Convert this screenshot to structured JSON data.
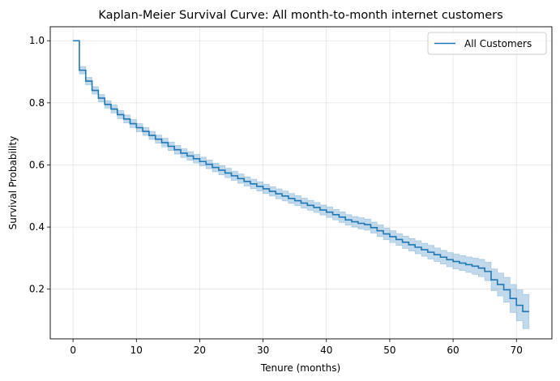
{
  "chart_data": {
    "type": "line",
    "step": true,
    "title": "Kaplan-Meier Survival Curve: All month-to-month internet customers",
    "xlabel": "Tenure (months)",
    "ylabel": "Survival Probability",
    "xlim": [
      -3.6,
      75.6
    ],
    "ylim": [
      0.04,
      1.045
    ],
    "xticks": [
      0,
      10,
      20,
      30,
      40,
      50,
      60,
      70
    ],
    "xtick_labels": [
      "0",
      "10",
      "20",
      "30",
      "40",
      "50",
      "60",
      "70"
    ],
    "yticks": [
      0.2,
      0.4,
      0.6,
      0.8,
      1.0
    ],
    "ytick_labels": [
      "0.2",
      "0.4",
      "0.6",
      "0.8",
      "1.0"
    ],
    "grid": true,
    "legend": {
      "position": "top-right",
      "entries": [
        "All Customers"
      ]
    },
    "colors": {
      "line": "#1f77b4",
      "band": "#1f77b4"
    },
    "series": [
      {
        "name": "All Customers",
        "x": [
          0,
          1,
          2,
          3,
          4,
          5,
          6,
          7,
          8,
          9,
          10,
          11,
          12,
          13,
          14,
          15,
          16,
          17,
          18,
          19,
          20,
          21,
          22,
          23,
          24,
          25,
          26,
          27,
          28,
          29,
          30,
          31,
          32,
          33,
          34,
          35,
          36,
          37,
          38,
          39,
          40,
          41,
          42,
          43,
          44,
          45,
          46,
          47,
          48,
          49,
          50,
          51,
          52,
          53,
          54,
          55,
          56,
          57,
          58,
          59,
          60,
          61,
          62,
          63,
          64,
          65,
          66,
          67,
          68,
          69,
          70,
          71,
          72
        ],
        "y": [
          1.0,
          0.905,
          0.87,
          0.84,
          0.815,
          0.795,
          0.78,
          0.762,
          0.748,
          0.733,
          0.72,
          0.708,
          0.695,
          0.683,
          0.672,
          0.66,
          0.649,
          0.638,
          0.629,
          0.62,
          0.611,
          0.602,
          0.592,
          0.583,
          0.574,
          0.565,
          0.556,
          0.547,
          0.539,
          0.531,
          0.523,
          0.515,
          0.507,
          0.5,
          0.492,
          0.485,
          0.477,
          0.47,
          0.463,
          0.455,
          0.448,
          0.44,
          0.432,
          0.423,
          0.417,
          0.412,
          0.408,
          0.398,
          0.388,
          0.378,
          0.369,
          0.36,
          0.351,
          0.343,
          0.335,
          0.327,
          0.319,
          0.311,
          0.303,
          0.295,
          0.289,
          0.284,
          0.279,
          0.274,
          0.268,
          0.257,
          0.23,
          0.215,
          0.198,
          0.17,
          0.148,
          0.128,
          0.128
        ],
        "ci_halfwidth": [
          0,
          0.012,
          0.012,
          0.012,
          0.012,
          0.012,
          0.013,
          0.013,
          0.013,
          0.013,
          0.013,
          0.013,
          0.013,
          0.013,
          0.014,
          0.014,
          0.014,
          0.014,
          0.014,
          0.014,
          0.014,
          0.014,
          0.014,
          0.015,
          0.015,
          0.015,
          0.015,
          0.015,
          0.015,
          0.015,
          0.015,
          0.015,
          0.016,
          0.016,
          0.016,
          0.016,
          0.016,
          0.016,
          0.016,
          0.016,
          0.017,
          0.017,
          0.017,
          0.017,
          0.017,
          0.018,
          0.018,
          0.018,
          0.019,
          0.019,
          0.019,
          0.019,
          0.02,
          0.02,
          0.021,
          0.021,
          0.022,
          0.022,
          0.022,
          0.023,
          0.024,
          0.024,
          0.025,
          0.026,
          0.028,
          0.03,
          0.035,
          0.037,
          0.04,
          0.045,
          0.05,
          0.055,
          0.055
        ]
      }
    ]
  }
}
